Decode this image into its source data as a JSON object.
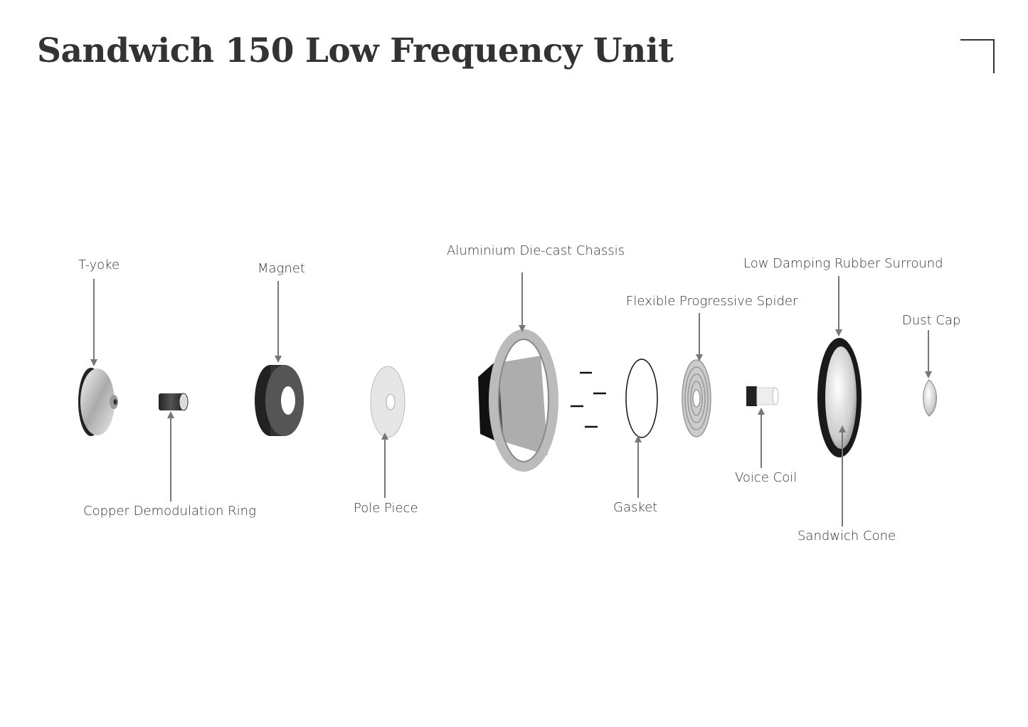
{
  "title": "Sandwich 150 Low Frequency Unit",
  "labels": {
    "t_yoke": "T-yoke",
    "magnet": "Magnet",
    "chassis": "Aluminium Die-cast Chassis",
    "spider": "Flexible Progressive Spider",
    "surround": "Low Damping Rubber Surround",
    "dust_cap": "Dust Cap",
    "copper_ring": "Copper Demodulation Ring",
    "pole_piece": "Pole Piece",
    "gasket": "Gasket",
    "voice_coil": "Voice Coil",
    "sandwich_cone": "Sandwich Cone"
  },
  "colors": {
    "arrow": "#777777",
    "text": "#333333"
  }
}
